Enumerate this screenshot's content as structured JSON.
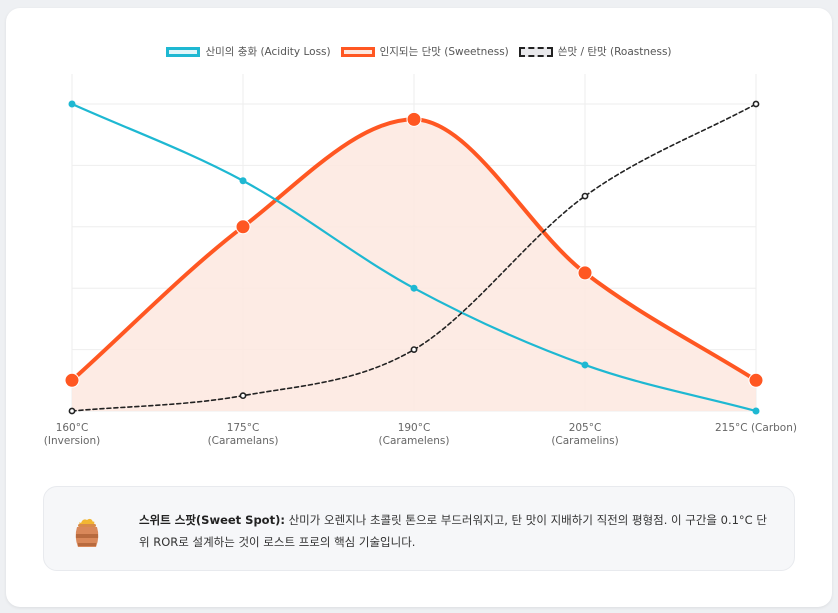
{
  "chart_data": {
    "type": "line",
    "categories": [
      "160°C|(Inversion)",
      "175°C|(Caramelans)",
      "190°C|(Caramelens)",
      "205°C|(Caramelins)",
      "215°C (Carbon)"
    ],
    "ylim": [
      0,
      100
    ],
    "grid": true,
    "legend": "top-center",
    "series": [
      {
        "name": "산미의 충화 (Acidity Loss)",
        "values": [
          100,
          75,
          40,
          15,
          0
        ],
        "color": "#1eb8d2",
        "style": "solid",
        "fill": false
      },
      {
        "name": "인지되는 단맛 (Sweetness)",
        "values": [
          10,
          60,
          95,
          45,
          10
        ],
        "color": "#ff5722",
        "style": "solid",
        "fill": true
      },
      {
        "name": "쓴맛 / 탄맛 (Roastness)",
        "values": [
          0,
          5,
          20,
          70,
          100
        ],
        "color": "#222222",
        "style": "dashed",
        "fill": false
      }
    ]
  },
  "info": {
    "title": "스위트 스팟(Sweet Spot):",
    "text": "산미가 오렌지나 초콜릿 톤으로 부드러워지고, 탄 맛이 지배하기 직전의 평형점. 이 구간을 0.1°C 단위 ROR로 설계하는 것이 로스트 프로의 핵심 기술입니다.",
    "icon": "honey-pot-icon"
  }
}
